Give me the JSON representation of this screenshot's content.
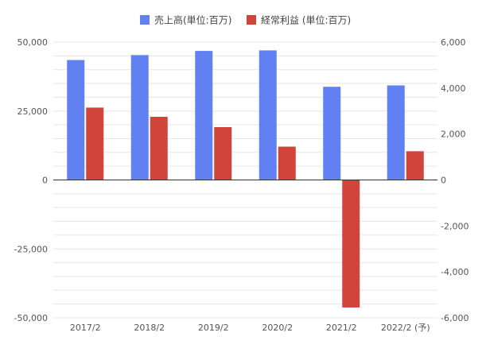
{
  "chart_data": {
    "type": "bar",
    "categories": [
      "2017/2",
      "2018/2",
      "2019/2",
      "2020/2",
      "2021/2",
      "2022/2 (予)"
    ],
    "series": [
      {
        "name": "売上高(単位:百万)",
        "axis": "left",
        "color": "#6180f2",
        "values": [
          43500,
          45300,
          46800,
          47000,
          33800,
          34300
        ]
      },
      {
        "name": "経常利益 (単位:百万)",
        "axis": "right",
        "color": "#d0443c",
        "values": [
          3150,
          2750,
          2300,
          1450,
          -5550,
          1250
        ]
      }
    ],
    "y_left": {
      "ylim": [
        -50000,
        50000
      ],
      "ticks": [
        50000,
        25000,
        0,
        -25000,
        -50000
      ],
      "tick_labels": [
        "50,000",
        "25,000",
        "0",
        "-25,000",
        "-50,000"
      ]
    },
    "y_right": {
      "ylim": [
        -6000,
        6000
      ],
      "ticks": [
        6000,
        4000,
        2000,
        0,
        -2000,
        -4000,
        -6000
      ],
      "tick_labels": [
        "6,000",
        "4,000",
        "2,000",
        "0",
        "-2,000",
        "-4,000",
        "-6,000"
      ]
    },
    "legend_position": "top-center",
    "grid": true
  }
}
